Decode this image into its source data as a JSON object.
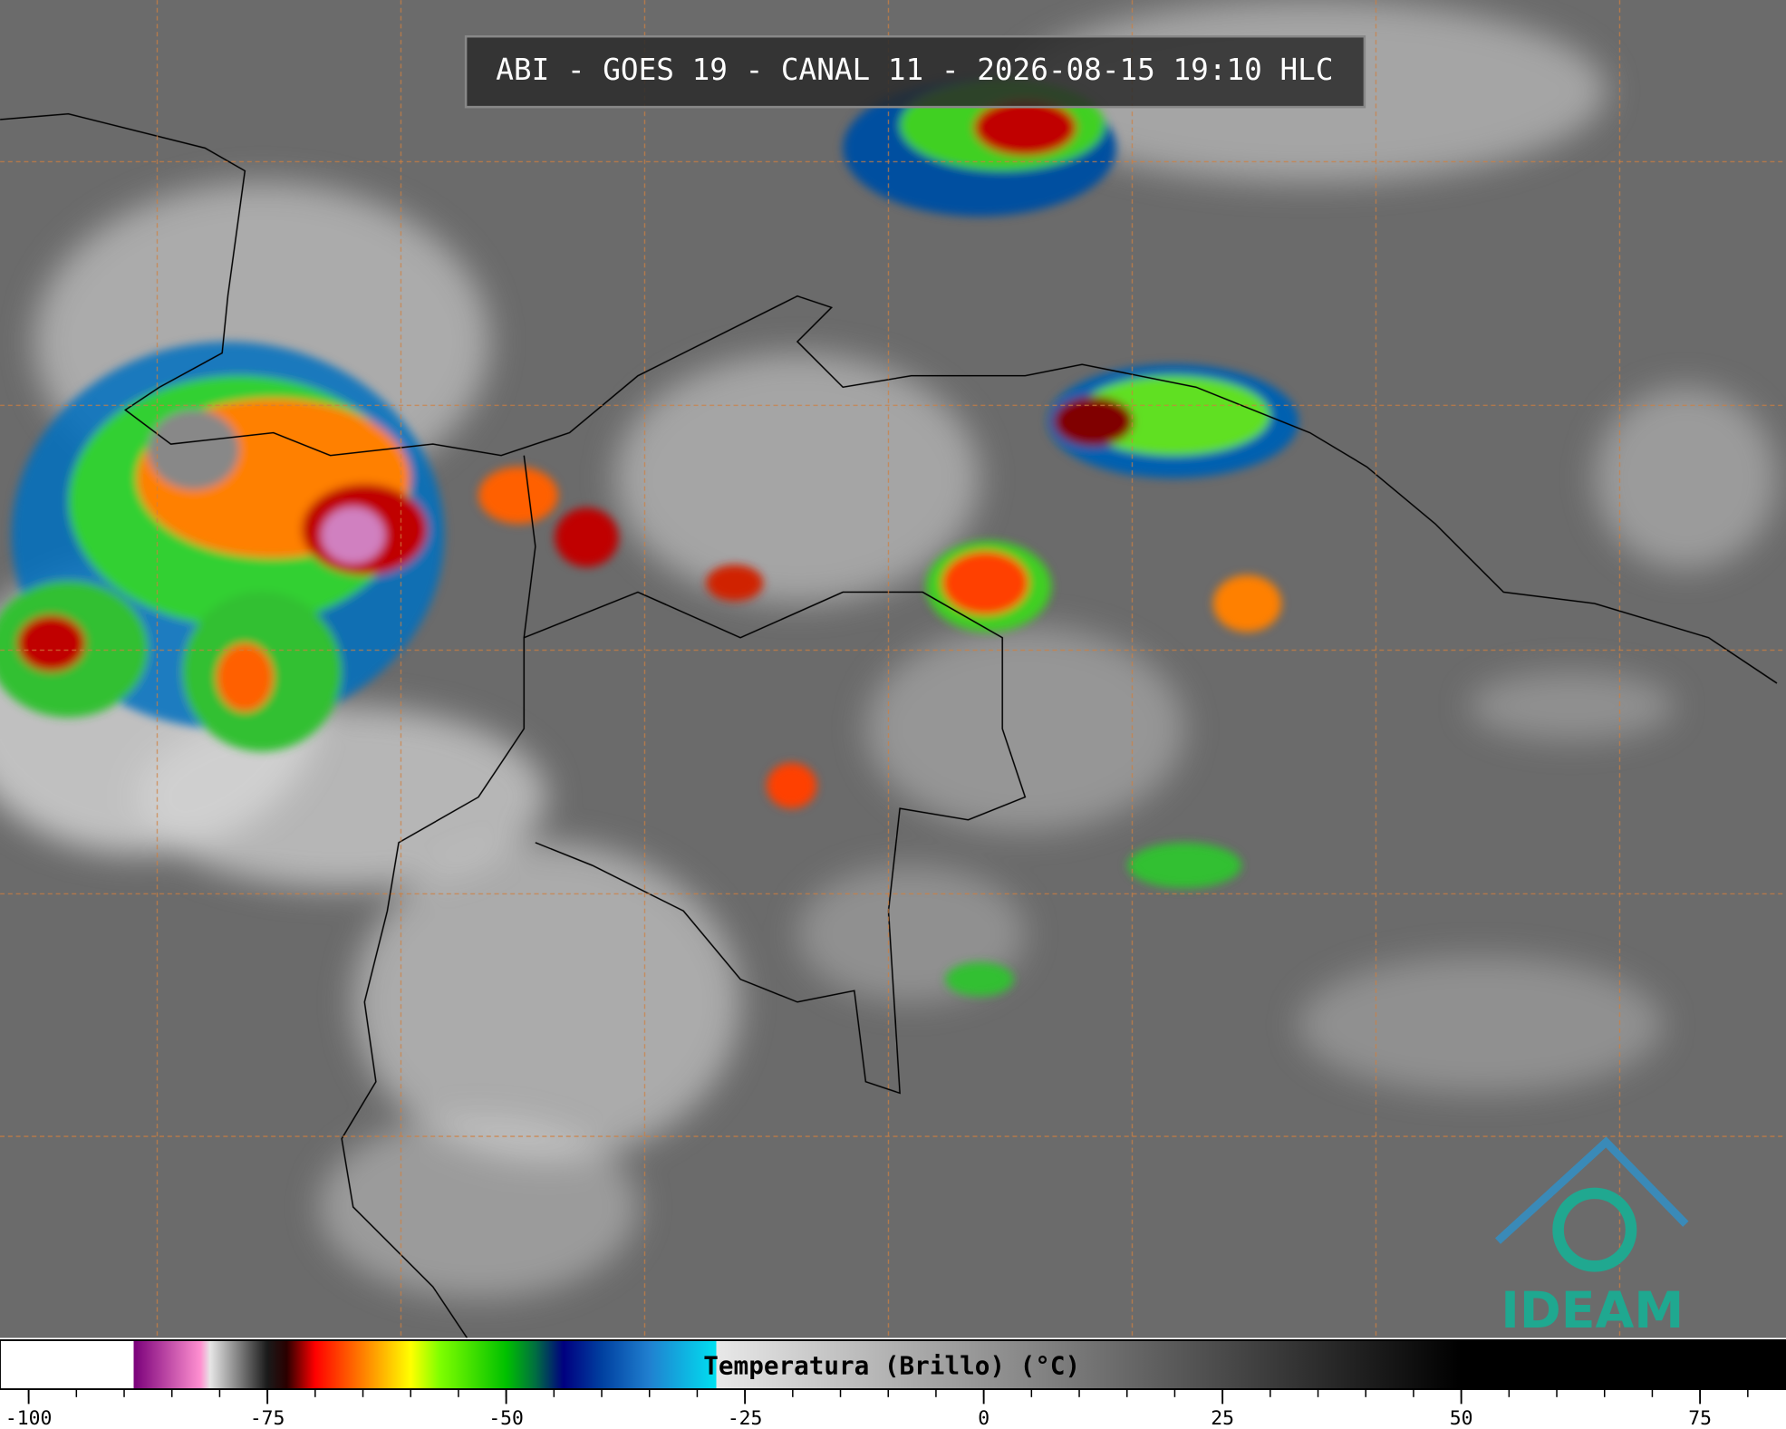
{
  "header": {
    "title": "ABI - GOES 19 - CANAL 11 - 2026-08-15 19:10 HLC"
  },
  "colorbar": {
    "label": "Temperatura (Brillo) (°C)",
    "range": [
      -103,
      84
    ],
    "ticks": [
      -100,
      -75,
      -50,
      -25,
      0,
      25,
      50,
      75
    ],
    "minor_tick_step": 5,
    "colorscale": [
      [
        -103,
        "#ffffff"
      ],
      [
        -89,
        "#ffffff"
      ],
      [
        -89,
        "#7a007a"
      ],
      [
        -82,
        "#ff90d0"
      ],
      [
        -81,
        "#e6e6e6"
      ],
      [
        -75,
        "#1a1a1a"
      ],
      [
        -73,
        "#2a0000"
      ],
      [
        -70,
        "#ff0000"
      ],
      [
        -65,
        "#ff8000"
      ],
      [
        -60,
        "#ffff00"
      ],
      [
        -57,
        "#80ff00"
      ],
      [
        -50,
        "#00c000"
      ],
      [
        -47,
        "#007040"
      ],
      [
        -44,
        "#000080"
      ],
      [
        -40,
        "#0040a0"
      ],
      [
        -35,
        "#2080d0"
      ],
      [
        -28,
        "#00e0f0"
      ],
      [
        -28,
        "#e8e8e8"
      ],
      [
        50,
        "#000000"
      ],
      [
        84,
        "#000000"
      ]
    ]
  },
  "logo": {
    "text": "IDEAM"
  }
}
